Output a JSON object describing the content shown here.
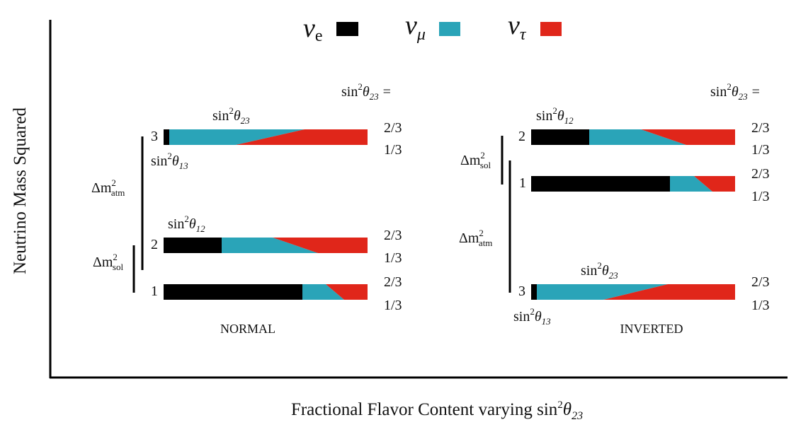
{
  "legend": {
    "items": [
      {
        "symbol": "ν",
        "sub": "e",
        "color": "#000000"
      },
      {
        "symbol": "ν",
        "sub": "μ",
        "color": "#2aa4b8"
      },
      {
        "symbol": "ν",
        "sub": "τ",
        "color": "#e0261a"
      }
    ]
  },
  "axes": {
    "y_title": "Neutrino Mass Squared",
    "x_title_prefix": "Fractional Flavor Content varying sin",
    "x_title_theta": "θ",
    "x_title_sub": "23"
  },
  "common": {
    "sin": "sin",
    "sup2": "2",
    "theta": "θ",
    "sub23": "23",
    "sub12": "12",
    "sub13": "13",
    "eq": "=",
    "two_thirds": "2/3",
    "one_third": "1/3",
    "delta_m": "Δm",
    "sub_atm": "atm",
    "sub_sol": "sol"
  },
  "normal": {
    "caption": "NORMAL",
    "levels": [
      "3",
      "2",
      "1"
    ]
  },
  "inverted": {
    "caption": "INVERTED",
    "levels": [
      "2",
      "1",
      "3"
    ]
  }
}
